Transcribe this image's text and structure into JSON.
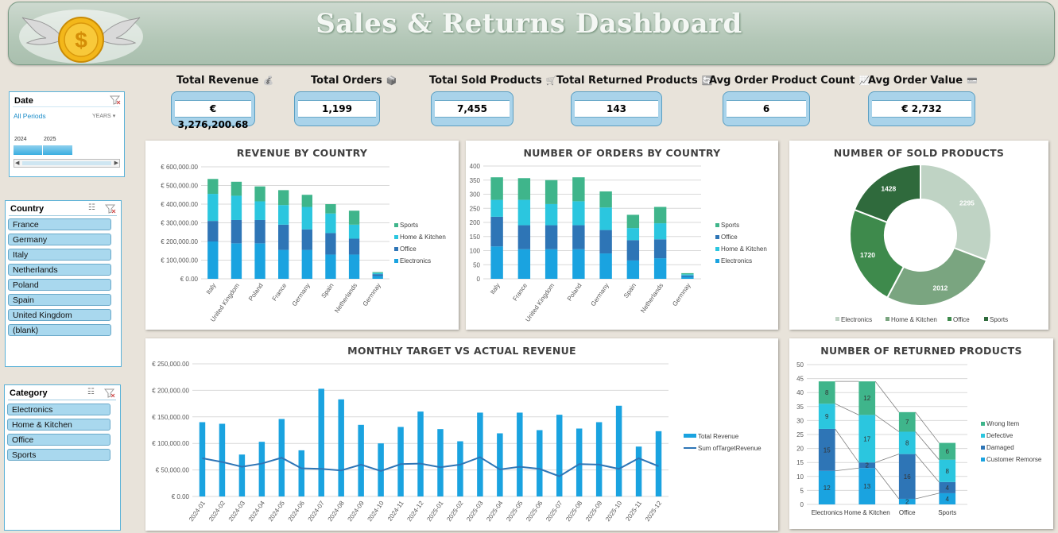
{
  "header": {
    "title": "Sales & Returns Dashboard",
    "logo_icon": "winged-coin-icon"
  },
  "kpis": [
    {
      "label": "Total Revenue",
      "value": "€ 3,276,200.68",
      "icon": "money-bag-icon"
    },
    {
      "label": "Total Orders",
      "value": "1,199",
      "icon": "box-icon"
    },
    {
      "label": "Total Sold Products",
      "value": "7,455",
      "icon": "cart-icon"
    },
    {
      "label": "Total Returned Products",
      "value": "143",
      "icon": "return-icon"
    },
    {
      "label": "Avg Order Product Count",
      "value": "6",
      "icon": "chart-icon"
    },
    {
      "label": "Avg Order Value",
      "value": "€ 2,732",
      "icon": "card-icon"
    }
  ],
  "date_slicer": {
    "title": "Date",
    "period": "All Periods",
    "level": "YEARS",
    "years": [
      "2024",
      "2025"
    ]
  },
  "country_slicer": {
    "title": "Country",
    "items": [
      "France",
      "Germany",
      "Italy",
      "Netherlands",
      "Poland",
      "Spain",
      "United Kingdom",
      "(blank)"
    ]
  },
  "category_slicer": {
    "title": "Category",
    "items": [
      "Electronics",
      "Home & Kitchen",
      "Office",
      "Sports"
    ]
  },
  "colors": {
    "electronics": "#1aa3e0",
    "office": "#2e75b6",
    "home_kitchen": "#2bc6df",
    "sports": "#3fb58b",
    "donut_electronics": "#bfd3c4",
    "donut_home": "#7aa580",
    "donut_office": "#3e8a4c",
    "donut_sports": "#2f6a3c"
  },
  "chart_data": [
    {
      "id": "revenue-by-country",
      "type": "bar",
      "stacked": true,
      "title": "REVENUE BY COUNTRY",
      "categories": [
        "Italy",
        "United Kingdom",
        "Poland",
        "France",
        "Germany",
        "Spain",
        "Netherlands",
        "Germnay"
      ],
      "series": [
        {
          "name": "Electronics",
          "values": [
            200000,
            190000,
            190000,
            155000,
            155000,
            130000,
            130000,
            15000
          ]
        },
        {
          "name": "Office",
          "values": [
            110000,
            125000,
            125000,
            135000,
            110000,
            115000,
            85000,
            10000
          ]
        },
        {
          "name": "Home & Kitchen",
          "values": [
            145000,
            130000,
            100000,
            105000,
            120000,
            105000,
            75000,
            6000
          ]
        },
        {
          "name": "Sports",
          "values": [
            80000,
            75000,
            80000,
            80000,
            65000,
            50000,
            75000,
            5000
          ]
        }
      ],
      "ylim": [
        0,
        600000
      ],
      "yticks": [
        "€ 0.00",
        "€ 100,000.00",
        "€ 200,000.00",
        "€ 300,000.00",
        "€ 400,000.00",
        "€ 500,000.00",
        "€ 600,000.00"
      ],
      "legend": [
        "Sports",
        "Home & Kitchen",
        "Office",
        "Electronics"
      ]
    },
    {
      "id": "orders-by-country",
      "type": "bar",
      "stacked": true,
      "title": "NUMBER OF ORDERS BY COUNTRY",
      "categories": [
        "Italy",
        "France",
        "United Kingdom",
        "Poland",
        "Germany",
        "Spain",
        "Netherlands",
        "Germnay"
      ],
      "series": [
        {
          "name": "Electronics",
          "values": [
            115,
            105,
            105,
            105,
            90,
            65,
            73,
            7
          ]
        },
        {
          "name": "Office",
          "values": [
            105,
            85,
            85,
            85,
            83,
            72,
            67,
            5
          ]
        },
        {
          "name": "Home & Kitchen",
          "values": [
            60,
            90,
            75,
            85,
            80,
            43,
            57,
            4
          ]
        },
        {
          "name": "Sports",
          "values": [
            80,
            77,
            85,
            85,
            57,
            47,
            58,
            4
          ]
        }
      ],
      "ylim": [
        0,
        400
      ],
      "yticks": [
        "0",
        "50",
        "100",
        "150",
        "200",
        "250",
        "300",
        "350",
        "400"
      ],
      "legend": [
        "Sports",
        "Office",
        "Home & Kitchen",
        "Electronics"
      ]
    },
    {
      "id": "sold-products",
      "type": "pie",
      "title": "NUMBER OF SOLD PRODUCTS",
      "categories": [
        "Electronics",
        "Home & Kitchen",
        "Office",
        "Sports"
      ],
      "values": [
        2295,
        2012,
        1720,
        1428
      ],
      "legend": [
        "Electronics",
        "Home & Kitchen",
        "Office",
        "Sports"
      ]
    },
    {
      "id": "monthly-target",
      "type": "bar",
      "title": "MONTHLY TARGET VS ACTUAL REVENUE",
      "categories": [
        "2024-01",
        "2024-02",
        "2024-03",
        "2024-04",
        "2024-05",
        "2024-06",
        "2024-07",
        "2024-08",
        "2024-09",
        "2024-10",
        "2024-11",
        "2024-12",
        "2025-01",
        "2025-02",
        "2025-03",
        "2025-04",
        "2025-05",
        "2025-06",
        "2025-07",
        "2025-08",
        "2025-09",
        "2025-10",
        "2025-11",
        "2025-12"
      ],
      "series": [
        {
          "name": "Total Revenue",
          "type": "bar",
          "values": [
            140000,
            137000,
            79000,
            103000,
            146000,
            87000,
            203000,
            183000,
            135000,
            100000,
            131000,
            160000,
            127000,
            104000,
            158000,
            119000,
            158000,
            125000,
            154000,
            128000,
            140000,
            171000,
            94000,
            123000
          ]
        },
        {
          "name": "Sum of TargetRevenue",
          "type": "line",
          "values": [
            72000,
            65000,
            56000,
            62000,
            73000,
            53000,
            52000,
            49000,
            60000,
            48000,
            61000,
            62000,
            55000,
            60000,
            74000,
            51000,
            56000,
            52000,
            38000,
            61000,
            60000,
            52000,
            72000,
            57000
          ]
        }
      ],
      "ylim": [
        0,
        250000
      ],
      "yticks": [
        "€ 0.00",
        "€ 50,000.00",
        "€ 100,000.00",
        "€ 150,000.00",
        "€ 200,000.00",
        "€ 250,000.00"
      ],
      "legend": [
        "Total Revenue",
        "Sum ofTargetRevenue"
      ]
    },
    {
      "id": "returned-products",
      "type": "bar",
      "stacked": true,
      "title": "NUMBER OF RETURNED PRODUCTS",
      "categories": [
        "Electronics",
        "Home & Kitchen",
        "Office",
        "Sports"
      ],
      "series": [
        {
          "name": "Customer Remorse",
          "values": [
            12,
            13,
            2,
            4
          ]
        },
        {
          "name": "Damaged",
          "values": [
            15,
            2,
            16,
            4
          ]
        },
        {
          "name": "Defective",
          "values": [
            9,
            17,
            8,
            8
          ]
        },
        {
          "name": "Wrong Item",
          "values": [
            8,
            12,
            7,
            6
          ]
        }
      ],
      "ylim": [
        0,
        50
      ],
      "yticks": [
        "0",
        "5",
        "10",
        "15",
        "20",
        "25",
        "30",
        "35",
        "40",
        "45",
        "50"
      ],
      "legend": [
        "Wrong Item",
        "Defective",
        "Damaged",
        "Customer Remorse"
      ]
    }
  ]
}
